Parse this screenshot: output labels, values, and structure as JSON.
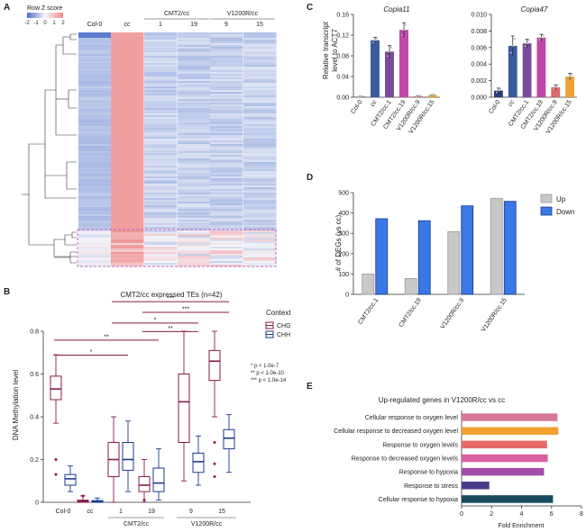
{
  "panels": {
    "a": "A",
    "b": "B",
    "c": "C",
    "d": "D",
    "e": "E"
  },
  "panel_a": {
    "legend_title": "Row Z score",
    "legend_ticks": [
      "-2",
      "-1",
      "0",
      "1",
      "2"
    ],
    "columns": [
      "Col-0",
      "cc",
      "1",
      "19",
      "9",
      "15"
    ],
    "groups": [
      "CMT2/cc",
      "V1200R/cc"
    ],
    "colors": {
      "low": "#4a6fc9",
      "mid": "#f4f4fa",
      "high": "#f08a8a",
      "box": "#c060c0"
    }
  },
  "chart_data": [
    {
      "panel": "B",
      "type": "boxplot",
      "title": "CMT2/cc expressed TEs (n=42)",
      "xlabel": "",
      "ylabel": "DNA Methylation level",
      "ylim": [
        0,
        0.8
      ],
      "yticks": [
        "0",
        "0.2",
        "0.4",
        "0.6",
        "0.8"
      ],
      "categories": [
        "Col-0",
        "cc",
        "1",
        "19",
        "9",
        "15"
      ],
      "groups": [
        {
          "label": "CMT2/cc",
          "members": [
            "1",
            "19"
          ]
        },
        {
          "label": "V1200R/cc",
          "members": [
            "9",
            "15"
          ]
        }
      ],
      "legend_title": "Context",
      "series": [
        {
          "name": "CHG",
          "color": "#8a1a4a",
          "boxes": [
            {
              "min": 0.37,
              "q1": 0.48,
              "median": 0.53,
              "q3": 0.59,
              "max": 0.69,
              "outliers": [
                0.2,
                0.13
              ]
            },
            {
              "min": 0,
              "q1": 0,
              "median": 0.005,
              "q3": 0.01,
              "max": 0.03,
              "outliers": [
                0.03
              ]
            },
            {
              "min": 0,
              "q1": 0.12,
              "median": 0.2,
              "q3": 0.28,
              "max": 0.4,
              "outliers": []
            },
            {
              "min": 0,
              "q1": 0.05,
              "median": 0.08,
              "q3": 0.12,
              "max": 0.2,
              "outliers": [
                0.01
              ]
            },
            {
              "min": 0.1,
              "q1": 0.28,
              "median": 0.47,
              "q3": 0.6,
              "max": 0.8,
              "outliers": []
            },
            {
              "min": 0.4,
              "q1": 0.57,
              "median": 0.66,
              "q3": 0.71,
              "max": 0.8,
              "outliers": [
                0.28,
                0.18,
                0.12
              ]
            }
          ]
        },
        {
          "name": "CHH",
          "color": "#1a3a8a",
          "boxes": [
            {
              "min": 0.05,
              "q1": 0.08,
              "median": 0.11,
              "q3": 0.13,
              "max": 0.17,
              "outliers": []
            },
            {
              "min": 0,
              "q1": 0,
              "median": 0.003,
              "q3": 0.008,
              "max": 0.02,
              "outliers": []
            },
            {
              "min": 0.05,
              "q1": 0.15,
              "median": 0.2,
              "q3": 0.28,
              "max": 0.38,
              "outliers": []
            },
            {
              "min": 0.01,
              "q1": 0.05,
              "median": 0.09,
              "q3": 0.16,
              "max": 0.25,
              "outliers": []
            },
            {
              "min": 0.08,
              "q1": 0.14,
              "median": 0.19,
              "q3": 0.23,
              "max": 0.31,
              "outliers": []
            },
            {
              "min": 0.14,
              "q1": 0.25,
              "median": 0.3,
              "q3": 0.34,
              "max": 0.41,
              "outliers": []
            }
          ]
        }
      ],
      "significance": [
        {
          "from": "Col-0",
          "to": "1",
          "label": "*",
          "y": 0.68
        },
        {
          "from": "Col-0",
          "to": "19",
          "label": "**",
          "y": 0.75
        },
        {
          "from": "1",
          "to": "9",
          "label": "*",
          "y": 0.83
        },
        {
          "from": "19",
          "to": "9",
          "label": "**",
          "y": 0.79
        },
        {
          "from": "1",
          "to": "15",
          "label": "***",
          "y": 0.93
        },
        {
          "from": "19",
          "to": "15",
          "label": "***",
          "y": 0.88
        }
      ],
      "pvalue_notes": [
        "* p < 1.0e-7",
        "** p < 1.0e-10",
        "*** p < 1.0e-14"
      ]
    },
    {
      "panel": "C",
      "type": "bar",
      "ylabel": [
        "Relative transcript",
        "level to ACT7"
      ],
      "charts": [
        {
          "title": "Copia11",
          "ylim": [
            0,
            0.16
          ],
          "yticks": [
            "0.00",
            "0.04",
            "0.08",
            "0.12",
            "0.16"
          ],
          "categories": [
            "Col-0",
            "cc",
            "CMT2/cc.1",
            "CMT2/cc.19",
            "V1200R/cc.9",
            "V1200R/cc.15"
          ],
          "values": [
            0.001,
            0.11,
            0.088,
            0.13,
            0.002,
            0.004
          ],
          "errors": [
            0.001,
            0.006,
            0.012,
            0.014,
            0.001,
            0.001
          ],
          "colors": [
            "#2b3a78",
            "#3a5aa0",
            "#7a4a9a",
            "#c048a8",
            "#e06868",
            "#f0a030"
          ]
        },
        {
          "title": "Copia47",
          "ylim": [
            0,
            0.01
          ],
          "yticks": [
            "0.000",
            "0.002",
            "0.004",
            "0.006",
            "0.008",
            "0.010"
          ],
          "categories": [
            "Col-0",
            "cc",
            "CMT2/cc.1",
            "CMT2/cc.19",
            "V1200R/cc.9",
            "V1200R/cc.15"
          ],
          "values": [
            0.0008,
            0.0062,
            0.0065,
            0.0072,
            0.0012,
            0.0025
          ],
          "errors": [
            0.0003,
            0.0012,
            0.0005,
            0.0004,
            0.0003,
            0.0004
          ],
          "colors": [
            "#2b3a78",
            "#3a5aa0",
            "#7a4a9a",
            "#c048a8",
            "#e06868",
            "#f0a030"
          ]
        }
      ]
    },
    {
      "panel": "D",
      "type": "bar",
      "ylabel": "# of DEGs (vs cc)",
      "ylim": [
        0,
        500
      ],
      "yticks": [
        "0",
        "100",
        "200",
        "300",
        "400",
        "500"
      ],
      "categories": [
        "CMT2/cc.1",
        "CMT2/cc.19",
        "V1200R/cc.9",
        "V1200R/cc.15"
      ],
      "series": [
        {
          "name": "Up",
          "color": "#c8c8c8",
          "values": [
            100,
            78,
            308,
            472
          ]
        },
        {
          "name": "Down",
          "color": "#3a78e8",
          "values": [
            372,
            362,
            435,
            457
          ]
        }
      ]
    },
    {
      "panel": "E",
      "type": "barh",
      "title": "Up-regulated genes in V1200R/cc vs cc",
      "xlabel": "Fold Enrichment",
      "xlim": [
        0,
        8
      ],
      "xticks": [
        "0",
        "2",
        "4",
        "6",
        "8"
      ],
      "categories": [
        "Cellular response to oxygen level",
        "Cellular response to decreased oxygen level",
        "Response to oxygen levels",
        "Response to decreased oxygen levels",
        "Response to hypoxia",
        "Response to stress",
        "Cellular response to hypoxia"
      ],
      "values": [
        6.4,
        6.45,
        5.7,
        5.75,
        5.5,
        1.85,
        6.1
      ],
      "colors": [
        "#d87898",
        "#f0a030",
        "#e86868",
        "#d860a0",
        "#a04ca8",
        "#4a3a8a",
        "#1a4a60"
      ]
    }
  ]
}
